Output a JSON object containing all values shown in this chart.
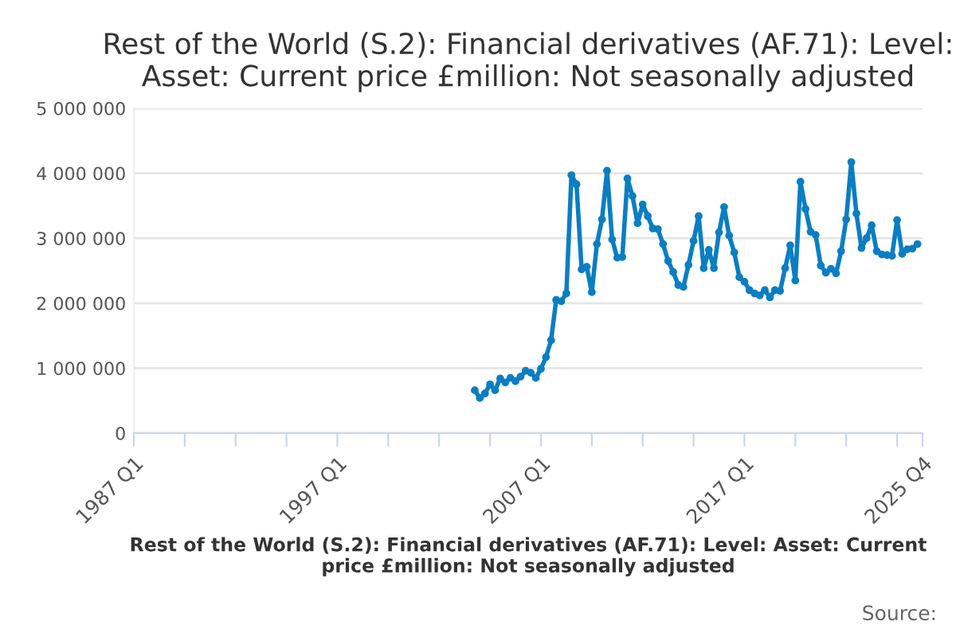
{
  "chart_data": {
    "type": "line",
    "title": "Rest of the World (S.2): Financial derivatives (AF.71): Level: Asset: Current price £million: Not seasonally adjusted",
    "xlabel": "Rest of the World (S.2): Financial derivatives (AF.71): Level: Asset: Current price £million: Not seasonally adjusted",
    "annotations": [
      "Source:"
    ],
    "categories": [
      "1987 Q1",
      null,
      null,
      null,
      null,
      null,
      null,
      null,
      null,
      null,
      null,
      null,
      null,
      null,
      null,
      null,
      null,
      null,
      null,
      null,
      null,
      null,
      null,
      null,
      null,
      null,
      null,
      null,
      null,
      null,
      null,
      null,
      null,
      null,
      null,
      null,
      null,
      null,
      null,
      null,
      "1997 Q1",
      null,
      null,
      null,
      null,
      null,
      null,
      null,
      null,
      null,
      null,
      null,
      null,
      null,
      null,
      null,
      null,
      null,
      null,
      null,
      null,
      null,
      null,
      null,
      null,
      null,
      null,
      null,
      null,
      null,
      null,
      null,
      null,
      null,
      null,
      null,
      null,
      null,
      null,
      null,
      "2007 Q1",
      null,
      null,
      null,
      null,
      null,
      null,
      null,
      null,
      null,
      null,
      null,
      null,
      null,
      null,
      null,
      null,
      null,
      null,
      null,
      null,
      null,
      null,
      null,
      null,
      null,
      null,
      null,
      null,
      null,
      null,
      null,
      null,
      null,
      null,
      null,
      null,
      null,
      null,
      null,
      "2017 Q1",
      null,
      null,
      null,
      null,
      null,
      null,
      null,
      null,
      null,
      null,
      null,
      null,
      null,
      null,
      null,
      null,
      null,
      null,
      null,
      null,
      null,
      null,
      null,
      null,
      null,
      null,
      null,
      null,
      null,
      null,
      null,
      null,
      null,
      null,
      "2025 Q4"
    ],
    "series": [
      {
        "color": "#0a7ec2",
        "values": [
          null,
          null,
          null,
          null,
          null,
          null,
          null,
          null,
          null,
          null,
          null,
          null,
          null,
          null,
          null,
          null,
          null,
          null,
          null,
          null,
          null,
          null,
          null,
          null,
          null,
          null,
          null,
          null,
          null,
          null,
          null,
          null,
          null,
          null,
          null,
          null,
          null,
          null,
          null,
          null,
          null,
          null,
          null,
          null,
          null,
          null,
          null,
          null,
          null,
          null,
          null,
          null,
          null,
          null,
          null,
          null,
          null,
          null,
          null,
          null,
          null,
          null,
          null,
          null,
          null,
          null,
          null,
          660000,
          540000,
          610000,
          750000,
          660000,
          840000,
          780000,
          850000,
          800000,
          870000,
          960000,
          930000,
          850000,
          990000,
          1170000,
          1430000,
          2050000,
          2030000,
          2150000,
          3970000,
          3830000,
          2520000,
          2560000,
          2170000,
          2910000,
          3290000,
          4040000,
          2980000,
          2700000,
          2710000,
          3920000,
          3650000,
          3230000,
          3520000,
          3340000,
          3150000,
          3140000,
          2910000,
          2650000,
          2480000,
          2280000,
          2250000,
          2590000,
          2960000,
          3340000,
          2540000,
          2820000,
          2540000,
          3090000,
          3480000,
          3040000,
          2780000,
          2400000,
          2330000,
          2200000,
          2150000,
          2120000,
          2200000,
          2090000,
          2200000,
          2190000,
          2540000,
          2890000,
          2350000,
          3870000,
          3450000,
          3100000,
          3050000,
          2580000,
          2470000,
          2530000,
          2460000,
          2800000,
          3290000,
          4170000,
          3380000,
          2850000,
          3000000,
          3200000,
          2800000,
          2750000,
          2740000,
          2730000,
          3280000,
          2760000,
          2830000,
          2840000,
          2910000,
          null
        ]
      }
    ],
    "ylim": [
      0,
      5000000
    ],
    "yticks": [
      0,
      {
        "value": 1000000,
        "label": "1 000 000"
      },
      {
        "value": 2000000,
        "label": "2 000 000"
      },
      {
        "value": 3000000,
        "label": "3 000 000"
      },
      {
        "value": 4000000,
        "label": "4 000 000"
      },
      {
        "value": 5000000,
        "label": "5 000 000"
      }
    ],
    "grid": "y",
    "marker": "circle",
    "line_style": "solid"
  }
}
